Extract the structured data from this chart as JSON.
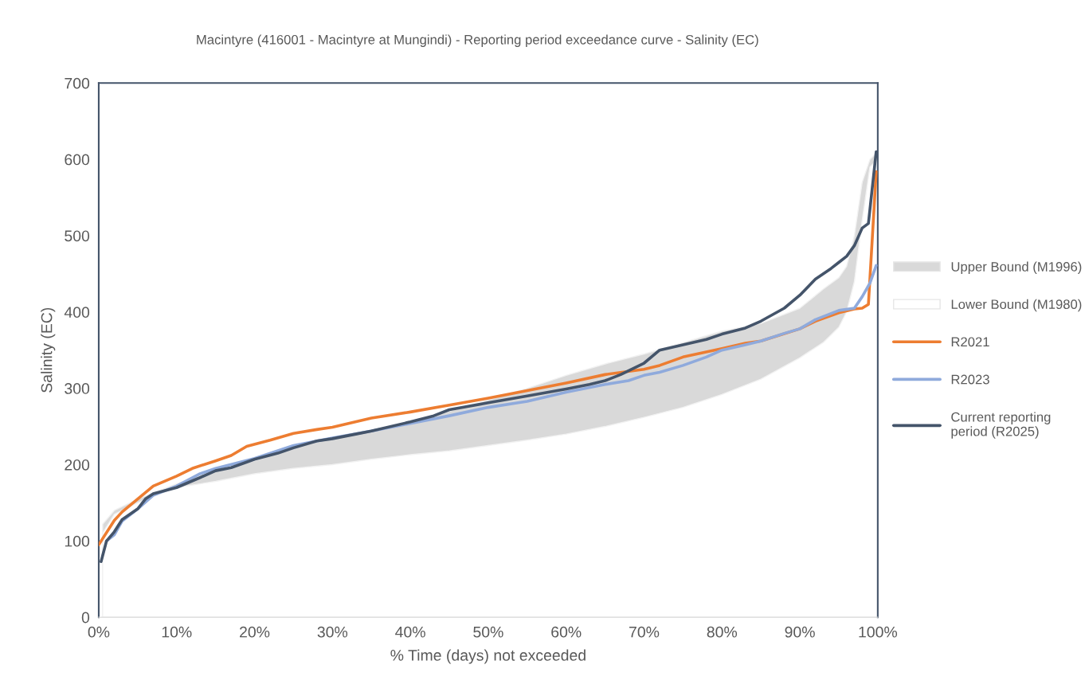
{
  "chart_data": {
    "type": "line",
    "title": "Macintyre (416001 - Macintyre at Mungindi) - Reporting period exceedance curve - Salinity (EC)",
    "xlabel": "% Time (days) not exceeded",
    "ylabel": "Salinity (EC)",
    "xlim": [
      0,
      100
    ],
    "xticks": [
      {
        "value": 0,
        "label": "0%"
      },
      {
        "value": 10,
        "label": "10%"
      },
      {
        "value": 20,
        "label": "20%"
      },
      {
        "value": 30,
        "label": "30%"
      },
      {
        "value": 40,
        "label": "40%"
      },
      {
        "value": 50,
        "label": "50%"
      },
      {
        "value": 60,
        "label": "60%"
      },
      {
        "value": 70,
        "label": "70%"
      },
      {
        "value": 80,
        "label": "80%"
      },
      {
        "value": 90,
        "label": "90%"
      },
      {
        "value": 100,
        "label": "100%"
      }
    ],
    "ylim": [
      0,
      700
    ],
    "yticks": [
      0,
      100,
      200,
      300,
      400,
      500,
      600,
      700
    ],
    "grid": false,
    "legend": "right",
    "series": [
      {
        "name": "Upper Bound (M1996)",
        "type": "area",
        "color": "#d9d9d9",
        "x": [
          0.5,
          2,
          5,
          10,
          15,
          20,
          25,
          30,
          35,
          40,
          45,
          50,
          55,
          60,
          65,
          70,
          75,
          80,
          85,
          90,
          93,
          95,
          96,
          97,
          98,
          99,
          100
        ],
        "values": [
          122,
          140,
          155,
          175,
          192,
          205,
          222,
          235,
          245,
          255,
          270,
          285,
          300,
          317,
          332,
          345,
          360,
          375,
          385,
          405,
          430,
          445,
          460,
          500,
          570,
          600,
          610
        ]
      },
      {
        "name": "Lower Bound (M1980)",
        "type": "area",
        "color": "#ffffff",
        "x": [
          0.5,
          2,
          5,
          10,
          15,
          20,
          25,
          30,
          35,
          40,
          45,
          50,
          55,
          60,
          65,
          70,
          75,
          80,
          85,
          90,
          93,
          95,
          96,
          97,
          98,
          99,
          100
        ],
        "values": [
          110,
          135,
          150,
          170,
          178,
          188,
          195,
          200,
          207,
          213,
          218,
          225,
          232,
          240,
          250,
          262,
          275,
          292,
          312,
          340,
          360,
          380,
          400,
          440,
          520,
          590,
          600
        ]
      },
      {
        "name": "R2021",
        "color": "#ed7d31",
        "x": [
          0,
          2,
          3,
          5,
          7,
          10,
          12,
          15,
          17,
          19,
          22,
          25,
          28,
          30,
          35,
          40,
          45,
          50,
          55,
          60,
          65,
          70,
          72,
          75,
          80,
          83,
          85,
          90,
          92,
          95,
          97,
          98,
          98.8,
          99.8
        ],
        "values": [
          95,
          127,
          138,
          155,
          172,
          185,
          195,
          205,
          212,
          224,
          232,
          241,
          246,
          249,
          261,
          269,
          278,
          287,
          297,
          307,
          318,
          325,
          330,
          341,
          352,
          359,
          362,
          378,
          388,
          399,
          404,
          405,
          410,
          584
        ]
      },
      {
        "name": "R2023",
        "color": "#8faadc",
        "x": [
          1,
          2,
          3,
          5,
          7,
          10,
          13,
          15,
          20,
          25,
          30,
          35,
          40,
          45,
          50,
          55,
          60,
          65,
          68,
          70,
          72,
          75,
          78,
          80,
          83,
          85,
          88,
          90,
          92,
          95,
          97,
          98,
          99,
          99.8
        ],
        "values": [
          100,
          108,
          126,
          142,
          160,
          172,
          188,
          195,
          208,
          225,
          235,
          244,
          254,
          264,
          275,
          283,
          295,
          305,
          310,
          317,
          321,
          330,
          341,
          350,
          357,
          362,
          372,
          378,
          390,
          402,
          405,
          420,
          438,
          461
        ]
      },
      {
        "name": "Current reporting period (R2025)",
        "color": "#44546a",
        "x": [
          0.3,
          1,
          2,
          3,
          5,
          6,
          7,
          10,
          13,
          15,
          17,
          20,
          23,
          25,
          28,
          30,
          33,
          35,
          40,
          43,
          45,
          50,
          55,
          60,
          63,
          65,
          67,
          70,
          72,
          75,
          78,
          80,
          83,
          85,
          88,
          90,
          92,
          94,
          95,
          96,
          97,
          98,
          98.8,
          99.8
        ],
        "values": [
          73,
          100,
          112,
          128,
          142,
          155,
          162,
          170,
          183,
          192,
          196,
          207,
          215,
          222,
          231,
          234,
          240,
          244,
          256,
          264,
          272,
          281,
          290,
          299,
          305,
          310,
          318,
          333,
          350,
          357,
          364,
          371,
          379,
          388,
          405,
          422,
          443,
          457,
          465,
          473,
          487,
          510,
          516,
          610
        ]
      }
    ]
  }
}
